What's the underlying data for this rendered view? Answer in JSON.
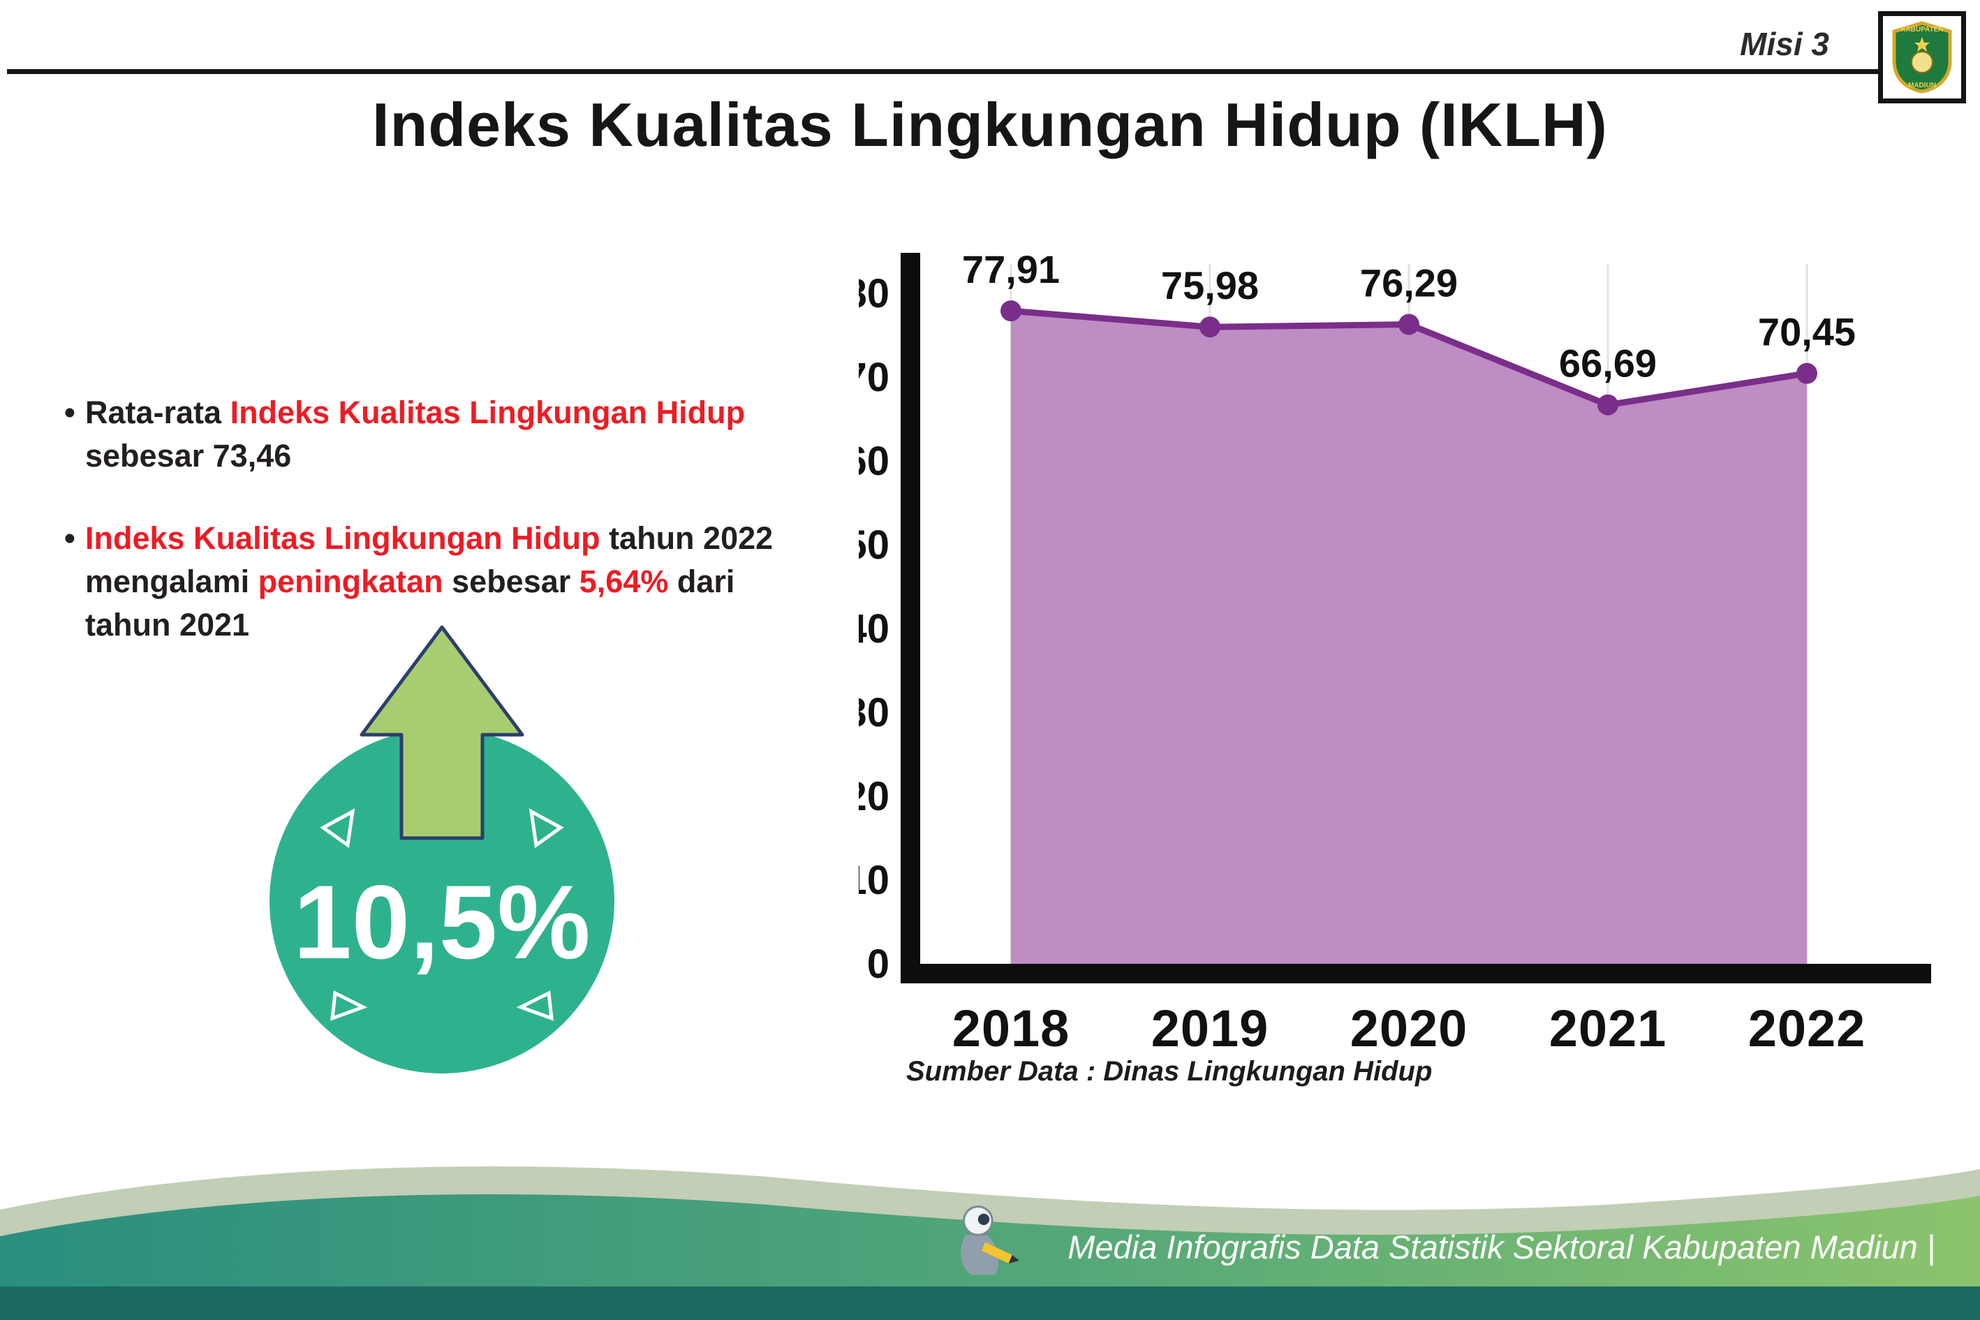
{
  "page": {
    "misi_label": "Misi 3",
    "title": "Indeks Kualitas Lingkungan Hidup (IKLH)",
    "bullet_char": "•",
    "source_note": "Sumber Data : Dinas Lingkungan Hidup",
    "footer_text": "Media Infografis Data Statistik Sektoral Kabupaten Madiun |"
  },
  "colors": {
    "accent_red": "#ed1c24",
    "text_black": "#231f20",
    "badge_teal": "#2eb28e",
    "arrow_green": "#a6ce70",
    "area_purple": "#bd8dc4",
    "line_purple": "#7a2e8a",
    "footer_dark_teal": "#1d6a63"
  },
  "bullets": [
    {
      "segments": [
        {
          "text": "Rata-rata ",
          "color": "#231f20"
        },
        {
          "text": "Indeks Kualitas Lingkungan Hidup",
          "color": "#ed1c24"
        },
        {
          "text": " sebesar 73,46",
          "color": "#231f20"
        }
      ]
    },
    {
      "segments": [
        {
          "text": "Indeks Kualitas Lingkungan Hidup",
          "color": "#ed1c24"
        },
        {
          "text": " tahun 2022 mengalami ",
          "color": "#231f20"
        },
        {
          "text": "peningkatan",
          "color": "#ed1c24"
        },
        {
          "text": " sebesar ",
          "color": "#231f20"
        },
        {
          "text": "5,64%",
          "color": "#ed1c24"
        },
        {
          "text": " dari tahun 2021",
          "color": "#231f20"
        }
      ]
    }
  ],
  "badge": {
    "value": "10,5%"
  },
  "chart_data": {
    "type": "area",
    "categories": [
      "2018",
      "2019",
      "2020",
      "2021",
      "2022"
    ],
    "values": [
      77.91,
      75.98,
      76.29,
      66.69,
      70.45
    ],
    "value_labels": [
      "77,91",
      "75,98",
      "76,29",
      "66,69",
      "70,45"
    ],
    "title": "",
    "xlabel": "",
    "ylabel": "",
    "ylim": [
      0,
      80
    ],
    "ytick_step": 10,
    "grid": true,
    "legend": "none",
    "area_color": "#bd8dc4",
    "line_color": "#7a2e8a"
  },
  "logo": {
    "name": "Kabupaten Madiun",
    "top_text": "KABUPATEN",
    "bottom_text": "MADIUN"
  }
}
